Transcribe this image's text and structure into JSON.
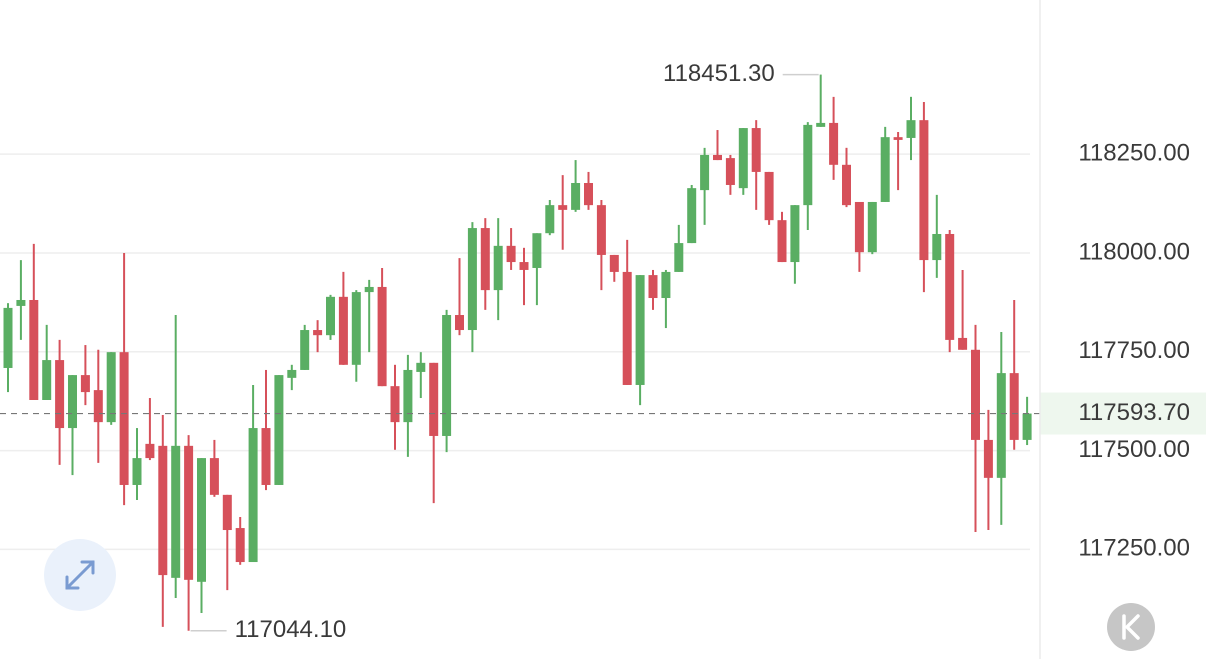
{
  "chart_data": {
    "type": "candlestick",
    "up_color": "#5aae63",
    "down_color": "#d6505a",
    "grid": true,
    "ylim": [
      116972.7,
      118640
    ],
    "yticks": [
      {
        "value": 117250,
        "label": "117250.00"
      },
      {
        "value": 117500,
        "label": "117500.00"
      },
      {
        "value": 117750,
        "label": "117750.00"
      },
      {
        "value": 118000,
        "label": "118000.00"
      },
      {
        "value": 118250,
        "label": "118250.00"
      }
    ],
    "max_annotation": {
      "value": 118451.3,
      "label": "118451.30"
    },
    "min_annotation": {
      "value": 117044.1,
      "label": "117044.10"
    },
    "current_price": {
      "value": 117593.7,
      "label": "117593.70"
    },
    "ohlc": [
      [
        117709,
        117873,
        117648,
        117861
      ],
      [
        117866,
        117982,
        117780,
        117881
      ],
      [
        117881,
        118023,
        117628,
        117628
      ],
      [
        117628,
        117818,
        117628,
        117729
      ],
      [
        117729,
        117780,
        117464,
        117557
      ],
      [
        117557,
        117691,
        117438,
        117691
      ],
      [
        117691,
        117767,
        117615,
        117648
      ],
      [
        117653,
        117755,
        117469,
        117572
      ],
      [
        117572,
        117749,
        117565,
        117749
      ],
      [
        117749,
        118000,
        117362,
        117413
      ],
      [
        117413,
        117557,
        117375,
        117481
      ],
      [
        117517,
        117633,
        117476,
        117481
      ],
      [
        117512,
        117590,
        117054,
        117185
      ],
      [
        117178,
        117843,
        117127,
        117512
      ],
      [
        117512,
        117539,
        117044.1,
        117173
      ],
      [
        117168,
        117481,
        117089,
        117481
      ],
      [
        117481,
        117527,
        117383,
        117388
      ],
      [
        117388,
        117388,
        117147,
        117299
      ],
      [
        117304,
        117332,
        117211,
        117218
      ],
      [
        117218,
        117666,
        117218,
        117557
      ],
      [
        117557,
        117704,
        117400,
        117413
      ],
      [
        117413,
        117691,
        117413,
        117691
      ],
      [
        117684,
        117717,
        117653,
        117704
      ],
      [
        117704,
        117818,
        117704,
        117805
      ],
      [
        117805,
        117830,
        117749,
        117792
      ],
      [
        117792,
        117894,
        117780,
        117889
      ],
      [
        117889,
        117952,
        117717,
        117717
      ],
      [
        117717,
        117906,
        117674,
        117901
      ],
      [
        117901,
        117932,
        117749,
        117914
      ],
      [
        117914,
        117962,
        117663,
        117663
      ],
      [
        117663,
        117717,
        117502,
        117572
      ],
      [
        117572,
        117742,
        117484,
        117704
      ],
      [
        117699,
        117749,
        117633,
        117722
      ],
      [
        117722,
        117722,
        117367,
        117537
      ],
      [
        117537,
        117856,
        117496,
        117843
      ],
      [
        117843,
        117987,
        117792,
        117805
      ],
      [
        117805,
        118078,
        117749,
        118063
      ],
      [
        118063,
        118088,
        117856,
        117906
      ],
      [
        117906,
        118088,
        117830,
        118018
      ],
      [
        118018,
        118063,
        117957,
        117977
      ],
      [
        117977,
        118013,
        117868,
        117957
      ],
      [
        117962,
        118050,
        117868,
        118050
      ],
      [
        118050,
        118134,
        118045,
        118121
      ],
      [
        118121,
        118197,
        118008,
        118109
      ],
      [
        118109,
        118235,
        118104,
        118177
      ],
      [
        118177,
        118205,
        118109,
        118121
      ],
      [
        118121,
        118134,
        117906,
        117995
      ],
      [
        117995,
        117995,
        117927,
        117952
      ],
      [
        117952,
        118033,
        117666,
        117666
      ],
      [
        117666,
        117944,
        117615,
        117944
      ],
      [
        117944,
        117957,
        117856,
        117886
      ],
      [
        117886,
        117957,
        117810,
        117952
      ],
      [
        117952,
        118071,
        117952,
        118025
      ],
      [
        118025,
        118172,
        118025,
        118164
      ],
      [
        118159,
        118266,
        118071,
        118248
      ],
      [
        118248,
        118311,
        118235,
        118235
      ],
      [
        118240,
        118248,
        118147,
        118172
      ],
      [
        118164,
        118316,
        118147,
        118316
      ],
      [
        118316,
        118336,
        118109,
        118205
      ],
      [
        118205,
        118205,
        118071,
        118083
      ],
      [
        118083,
        118104,
        117977,
        117977
      ],
      [
        117977,
        118121,
        117922,
        118121
      ],
      [
        118121,
        118331,
        118058,
        118324
      ],
      [
        118319,
        118451.3,
        118319,
        118329
      ],
      [
        118329,
        118395,
        118185,
        118223
      ],
      [
        118223,
        118266,
        118116,
        118121
      ],
      [
        118129,
        118129,
        117952,
        118002
      ],
      [
        118002,
        118129,
        117997,
        118129
      ],
      [
        118129,
        118319,
        118129,
        118293
      ],
      [
        118293,
        118306,
        118159,
        118286
      ],
      [
        118291,
        118395,
        118235,
        118336
      ],
      [
        118336,
        118382,
        117901,
        117982
      ],
      [
        117982,
        118147,
        117937,
        118048
      ],
      [
        118048,
        118058,
        117749,
        117780
      ],
      [
        117785,
        117957,
        117755,
        117755
      ],
      [
        117755,
        117818,
        117294,
        117527
      ],
      [
        117527,
        117603,
        117299,
        117431
      ],
      [
        117431,
        117800,
        117312,
        117696
      ],
      [
        117696,
        117881,
        117502,
        117527
      ],
      [
        117527,
        117636,
        117514,
        117593.7
      ]
    ]
  }
}
